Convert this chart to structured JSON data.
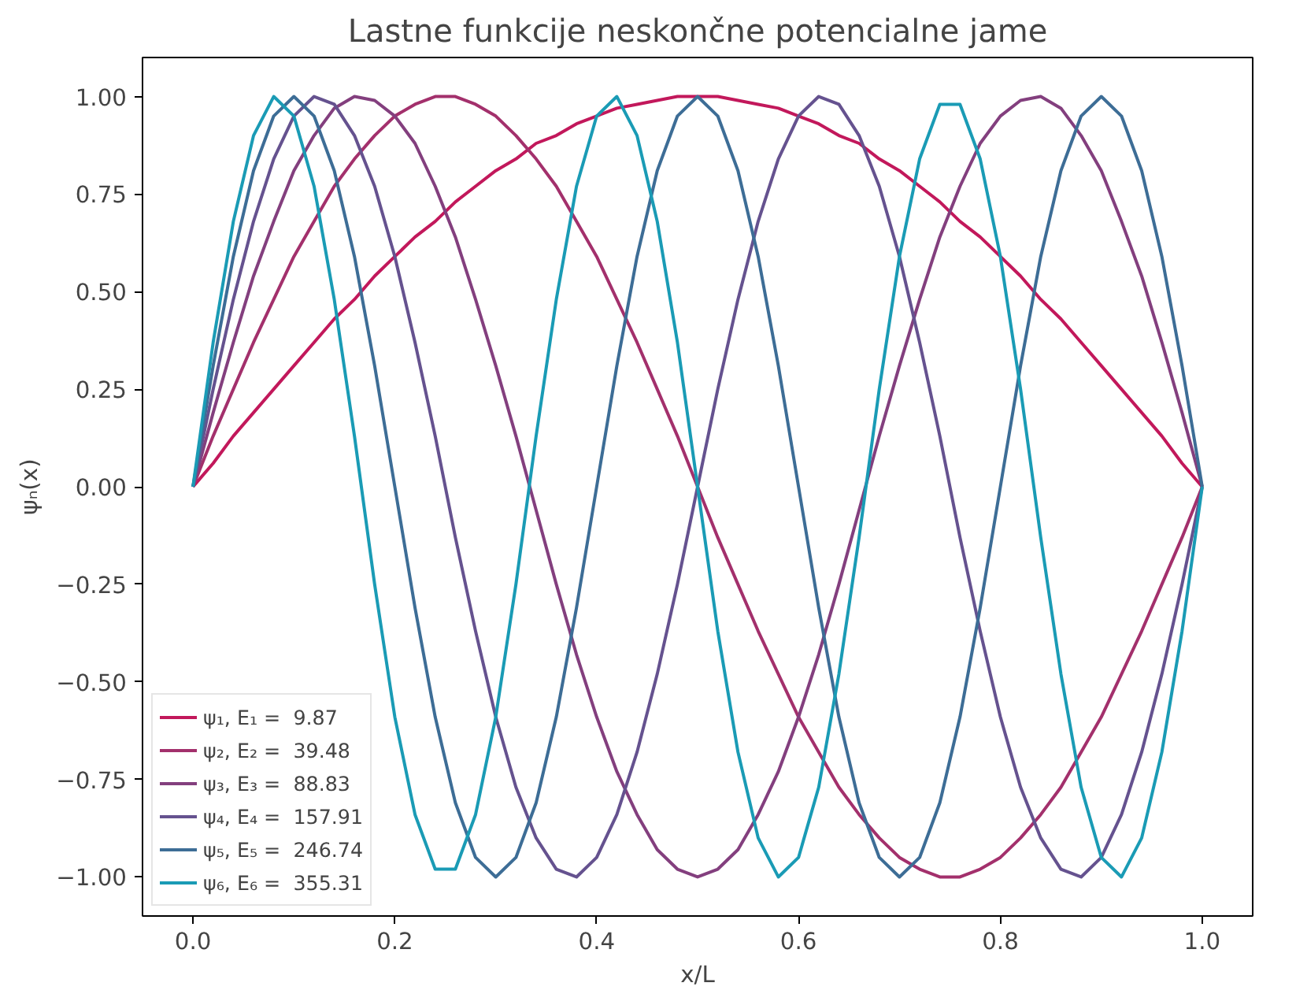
{
  "chart_data": {
    "type": "line",
    "title": "Lastne funkcije neskončne potencialne jame",
    "xlabel": "x/L",
    "ylabel": "ψₙ(x)",
    "x": [
      0,
      0.02,
      0.04,
      0.06,
      0.08,
      0.1,
      0.12,
      0.14,
      0.16,
      0.18,
      0.2,
      0.22,
      0.24,
      0.26,
      0.28,
      0.3,
      0.32,
      0.34,
      0.36,
      0.38,
      0.4,
      0.42,
      0.44,
      0.46,
      0.48,
      0.5,
      0.52,
      0.54,
      0.56,
      0.58,
      0.6,
      0.62,
      0.64,
      0.66,
      0.68,
      0.7,
      0.72,
      0.74,
      0.76,
      0.78,
      0.8,
      0.82,
      0.84,
      0.86,
      0.88,
      0.9,
      0.92,
      0.94,
      0.96,
      0.98,
      1
    ],
    "series": [
      {
        "name": "ψ₁, E₁ =  9.87",
        "color": "#c2185b",
        "values": [
          0,
          0.06,
          0.13,
          0.19,
          0.25,
          0.31,
          0.37,
          0.43,
          0.48,
          0.54,
          0.59,
          0.64,
          0.68,
          0.73,
          0.77,
          0.81,
          0.84,
          0.88,
          0.9,
          0.93,
          0.95,
          0.97,
          0.98,
          0.99,
          1,
          1,
          1,
          0.99,
          0.98,
          0.97,
          0.95,
          0.93,
          0.9,
          0.88,
          0.84,
          0.81,
          0.77,
          0.73,
          0.68,
          0.64,
          0.59,
          0.54,
          0.48,
          0.43,
          0.37,
          0.31,
          0.25,
          0.19,
          0.13,
          0.06,
          0
        ]
      },
      {
        "name": "ψ₂, E₂ =  39.48",
        "color": "#a3306c",
        "values": [
          0,
          0.13,
          0.25,
          0.37,
          0.48,
          0.59,
          0.68,
          0.77,
          0.84,
          0.9,
          0.95,
          0.98,
          1,
          1,
          0.98,
          0.95,
          0.9,
          0.84,
          0.77,
          0.68,
          0.59,
          0.48,
          0.37,
          0.25,
          0.13,
          0,
          -0.13,
          -0.25,
          -0.37,
          -0.48,
          -0.59,
          -0.68,
          -0.77,
          -0.84,
          -0.9,
          -0.95,
          -0.98,
          -1,
          -1,
          -0.98,
          -0.95,
          -0.9,
          -0.84,
          -0.77,
          -0.68,
          -0.59,
          -0.48,
          -0.37,
          -0.25,
          -0.13,
          0
        ]
      },
      {
        "name": "ψ₃, E₃ =  88.83",
        "color": "#833f7e",
        "values": [
          0,
          0.19,
          0.37,
          0.54,
          0.68,
          0.81,
          0.9,
          0.97,
          1,
          0.99,
          0.95,
          0.88,
          0.77,
          0.64,
          0.48,
          0.31,
          0.13,
          -0.06,
          -0.25,
          -0.43,
          -0.59,
          -0.73,
          -0.84,
          -0.93,
          -0.98,
          -1,
          -0.98,
          -0.93,
          -0.84,
          -0.73,
          -0.59,
          -0.43,
          -0.25,
          -0.06,
          0.13,
          0.31,
          0.48,
          0.64,
          0.77,
          0.88,
          0.95,
          0.99,
          1,
          0.97,
          0.9,
          0.81,
          0.68,
          0.54,
          0.37,
          0.19,
          0
        ]
      },
      {
        "name": "ψ₄, E₄ =  157.91",
        "color": "#65528f",
        "values": [
          0,
          0.25,
          0.48,
          0.68,
          0.84,
          0.95,
          1,
          0.98,
          0.9,
          0.77,
          0.59,
          0.37,
          0.13,
          -0.13,
          -0.37,
          -0.59,
          -0.77,
          -0.9,
          -0.98,
          -1,
          -0.95,
          -0.84,
          -0.68,
          -0.48,
          -0.25,
          0,
          0.25,
          0.48,
          0.68,
          0.84,
          0.95,
          1,
          0.98,
          0.9,
          0.77,
          0.59,
          0.37,
          0.13,
          -0.13,
          -0.37,
          -0.59,
          -0.77,
          -0.9,
          -0.98,
          -1,
          -0.95,
          -0.84,
          -0.68,
          -0.48,
          -0.25,
          0
        ]
      },
      {
        "name": "ψ₅, E₅ =  246.74",
        "color": "#3d6d96",
        "values": [
          0,
          0.31,
          0.59,
          0.81,
          0.95,
          1,
          0.95,
          0.81,
          0.59,
          0.31,
          0,
          -0.31,
          -0.59,
          -0.81,
          -0.95,
          -1,
          -0.95,
          -0.81,
          -0.59,
          -0.31,
          0,
          0.31,
          0.59,
          0.81,
          0.95,
          1,
          0.95,
          0.81,
          0.59,
          0.31,
          0,
          -0.31,
          -0.59,
          -0.81,
          -0.95,
          -1,
          -0.95,
          -0.81,
          -0.59,
          -0.31,
          0,
          0.31,
          0.59,
          0.81,
          0.95,
          1,
          0.95,
          0.81,
          0.59,
          0.31,
          0
        ]
      },
      {
        "name": "ψ₆, E₆ =  355.31",
        "color": "#1a9bb5",
        "values": [
          0,
          0.37,
          0.68,
          0.9,
          1,
          0.95,
          0.77,
          0.48,
          0.13,
          -0.25,
          -0.59,
          -0.84,
          -0.98,
          -0.98,
          -0.84,
          -0.59,
          -0.25,
          0.13,
          0.48,
          0.77,
          0.95,
          1,
          0.9,
          0.68,
          0.37,
          0,
          -0.37,
          -0.68,
          -0.9,
          -1,
          -0.95,
          -0.77,
          -0.48,
          -0.13,
          0.25,
          0.59,
          0.84,
          0.98,
          0.98,
          0.84,
          0.59,
          0.25,
          -0.13,
          -0.48,
          -0.77,
          -0.95,
          -1,
          -0.9,
          -0.68,
          -0.37,
          0
        ]
      }
    ],
    "xlim": [
      -0.05,
      1.05
    ],
    "ylim": [
      -1.1,
      1.1
    ],
    "xticks": [
      {
        "value": 0,
        "label": "0.0"
      },
      {
        "value": 0.2,
        "label": "0.2"
      },
      {
        "value": 0.4,
        "label": "0.4"
      },
      {
        "value": 0.6,
        "label": "0.6"
      },
      {
        "value": 0.8,
        "label": "0.8"
      },
      {
        "value": 1,
        "label": "1.0"
      }
    ],
    "yticks": [
      {
        "value": -1,
        "label": "−1.00"
      },
      {
        "value": -0.75,
        "label": "−0.75"
      },
      {
        "value": -0.5,
        "label": "−0.50"
      },
      {
        "value": -0.25,
        "label": "−0.25"
      },
      {
        "value": 0,
        "label": "0.00"
      },
      {
        "value": 0.25,
        "label": "0.25"
      },
      {
        "value": 0.5,
        "label": "0.50"
      },
      {
        "value": 0.75,
        "label": "0.75"
      },
      {
        "value": 1,
        "label": "1.00"
      }
    ],
    "legend": "bottom left",
    "grid": false,
    "marker": "none",
    "line_style": "solid"
  }
}
